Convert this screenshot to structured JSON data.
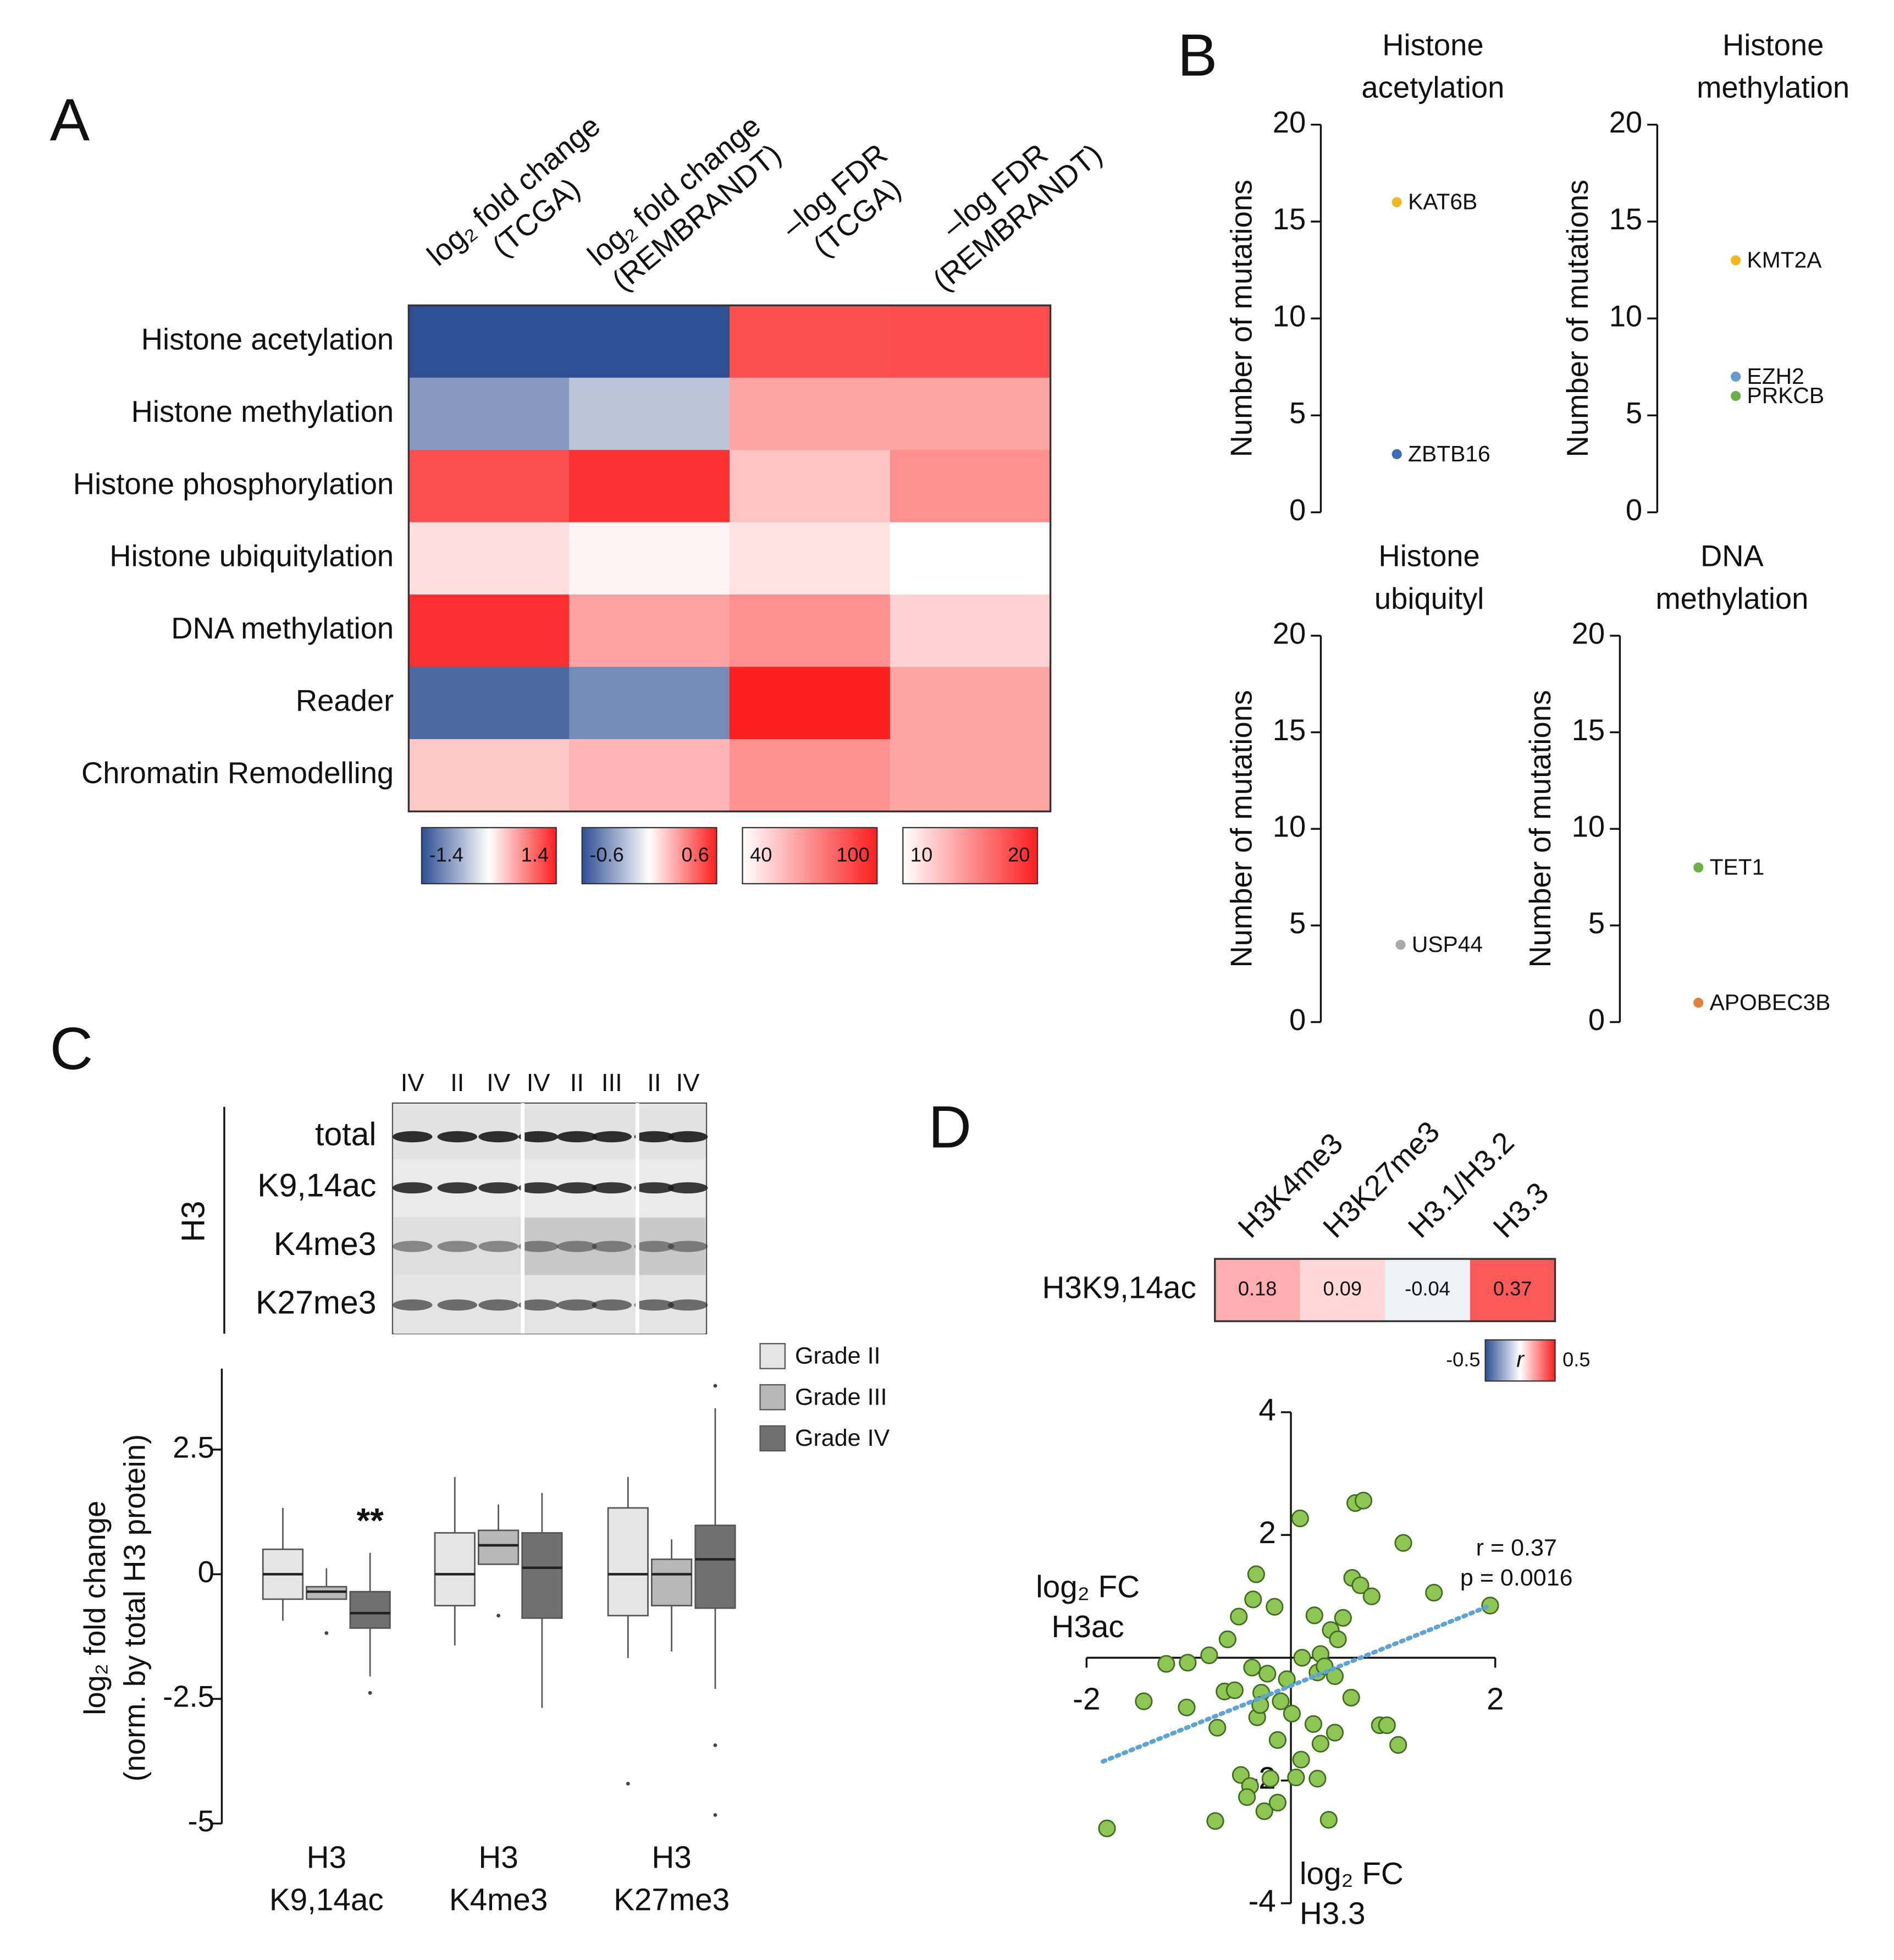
{
  "panel_labels": [
    "A",
    "B",
    "C",
    "D"
  ],
  "blot": {
    "lanes": [
      "IV",
      "II",
      "IV",
      "IV",
      "II",
      "III",
      "II",
      "IV"
    ],
    "group": "H3",
    "rows": [
      "total",
      "K9,14ac",
      "K4me3",
      "K27me3"
    ]
  },
  "chart_data": [
    {
      "type": "heatmap",
      "rows": [
        "Histone acetylation",
        "Histone methylation",
        "Histone phosphorylation",
        "Histone ubiquitylation",
        "DNA methylation",
        "Reader",
        "Chromatin Remodelling"
      ],
      "columns": [
        {
          "label": [
            "log₂ fold change",
            "(TCGA)"
          ],
          "lim": [
            -1.4,
            1.4
          ],
          "colors": [
            "#2e4f94",
            "#ffffff",
            "#fb1f1f"
          ]
        },
        {
          "label": [
            "log₂ fold change",
            "(REMBRANDT)"
          ],
          "lim": [
            -0.6,
            0.6
          ],
          "colors": [
            "#2e4f94",
            "#ffffff",
            "#fb1f1f"
          ]
        },
        {
          "label": [
            "–log FDR",
            "(TCGA)"
          ],
          "lim": [
            40,
            100
          ],
          "colors": [
            "#ffffff",
            "#fb1f1f"
          ]
        },
        {
          "label": [
            "–log FDR",
            "(REMBRANDT)"
          ],
          "lim": [
            10,
            20
          ],
          "colors": [
            "#ffffff",
            "#fb1f1f"
          ]
        }
      ],
      "values": [
        [
          -1.4,
          -0.6,
          87,
          18
        ],
        [
          -0.8,
          -0.2,
          64,
          14
        ],
        [
          1.1,
          0.55,
          56,
          15
        ],
        [
          0.2,
          0.03,
          48,
          10
        ],
        [
          1.3,
          0.25,
          70,
          12
        ],
        [
          -1.2,
          -0.4,
          100,
          14
        ],
        [
          0.35,
          0.2,
          70,
          14
        ]
      ]
    },
    {
      "type": "strip",
      "title": [
        "Histone",
        "acetylation"
      ],
      "ylabel": "Number of mutations",
      "ylim": [
        0,
        20
      ],
      "yticks": [
        0,
        5,
        10,
        15,
        20
      ],
      "categories": [
        "KAT6B",
        "ZBTB16"
      ],
      "values": [
        16,
        3
      ],
      "colors": [
        "#f2b622",
        "#3d6bb5"
      ]
    },
    {
      "type": "strip",
      "title": [
        "Histone",
        "methylation"
      ],
      "ylabel": "Number of mutations",
      "ylim": [
        0,
        20
      ],
      "yticks": [
        0,
        5,
        10,
        15,
        20
      ],
      "categories": [
        "KMT2A",
        "EZH2",
        "PRKCB"
      ],
      "values": [
        13,
        7,
        6
      ],
      "colors": [
        "#f2b622",
        "#6699cc",
        "#6fae44"
      ]
    },
    {
      "type": "strip",
      "title": [
        "Histone",
        "ubiquityl"
      ],
      "ylabel": "Number of mutations",
      "ylim": [
        0,
        20
      ],
      "yticks": [
        0,
        5,
        10,
        15,
        20
      ],
      "categories": [
        "USP44"
      ],
      "values": [
        4
      ],
      "colors": [
        "#aaaaaa"
      ]
    },
    {
      "type": "strip",
      "title": [
        "DNA",
        "methylation"
      ],
      "ylabel": "Number of mutations",
      "ylim": [
        0,
        20
      ],
      "yticks": [
        0,
        5,
        10,
        15,
        20
      ],
      "categories": [
        "TET1",
        "APOBEC3B"
      ],
      "values": [
        8,
        1
      ],
      "colors": [
        "#6fae44",
        "#e0803a"
      ]
    },
    {
      "type": "box",
      "categories": [
        [
          "H3",
          "K9,14ac"
        ],
        [
          "H3",
          "K4me3"
        ],
        [
          "H3",
          "K27me3"
        ]
      ],
      "ylabel": [
        "log₂ fold change",
        "(norm. by total H3 protein)"
      ],
      "ylim": [
        -5,
        4
      ],
      "yticks": [
        -5,
        -2.5,
        0,
        2.5
      ],
      "annotation": "**",
      "series": [
        {
          "name": "Grade II",
          "color": "#e6e6e6",
          "boxes": [
            {
              "min": -0.93,
              "q1": -0.5,
              "median": 0,
              "q3": 0.5,
              "max": 1.33
            },
            {
              "min": -1.43,
              "q1": -0.63,
              "median": 0,
              "q3": 0.83,
              "max": 1.95
            },
            {
              "min": -1.68,
              "q1": -0.83,
              "median": 0,
              "q3": 1.33,
              "max": 1.95,
              "outliers": [
                -4.2
              ]
            }
          ]
        },
        {
          "name": "Grade III",
          "color": "#b8b8b8",
          "boxes": [
            {
              "min": -0.5,
              "q1": -0.5,
              "median": -0.35,
              "q3": -0.25,
              "max": 0.12,
              "outliers": [
                -1.18
              ]
            },
            {
              "min": 0.2,
              "q1": 0.2,
              "median": 0.58,
              "q3": 0.88,
              "max": 1.4,
              "outliers": [
                -0.83
              ]
            },
            {
              "min": -1.55,
              "q1": -0.63,
              "median": 0,
              "q3": 0.3,
              "max": 0.7
            }
          ]
        },
        {
          "name": "Grade IV",
          "color": "#707070",
          "boxes": [
            {
              "min": -2.05,
              "q1": -1.08,
              "median": -0.78,
              "q3": -0.35,
              "max": 0.43,
              "outliers": [
                -2.38
              ]
            },
            {
              "min": -2.68,
              "q1": -0.88,
              "median": 0.13,
              "q3": 0.83,
              "max": 1.63
            },
            {
              "min": -2.3,
              "q1": -0.68,
              "median": 0.3,
              "q3": 0.98,
              "max": 3.33,
              "outliers": [
                3.78,
                -3.43,
                -4.83
              ]
            }
          ]
        }
      ]
    },
    {
      "type": "heatmap",
      "rows": [
        "H3K9,14ac"
      ],
      "columns": [
        "H3K4me3",
        "H3K27me3",
        "H3.1/H3.2",
        "H3.3"
      ],
      "values": [
        [
          0.18,
          0.09,
          -0.04,
          0.37
        ]
      ],
      "lim": [
        -0.5,
        0.5
      ],
      "colors": [
        "#2e4f94",
        "#ffffff",
        "#fb1f1f"
      ],
      "colorbar_label": "r"
    },
    {
      "type": "scatter",
      "xlabel": [
        "log₂ FC",
        "H3ac"
      ],
      "ylabel": [
        "log₂ FC",
        "H3.3"
      ],
      "xlim": [
        -2,
        2
      ],
      "ylim": [
        -4,
        4
      ],
      "xticks": [
        -2,
        2
      ],
      "yticks": [
        -4,
        -2,
        2,
        4
      ],
      "color": "#8dc653",
      "x": [
        0.09,
        0.63,
        0.71,
        1.1,
        1.4,
        1.95,
        -0.34,
        0.6,
        0.68,
        0.79,
        -0.37,
        -0.16,
        0.23,
        0.51,
        -0.51,
        0.39,
        0.46,
        -0.8,
        -0.62,
        0.11,
        0.29,
        -1.22,
        -1.01,
        -0.38,
        -0.23,
        -0.04,
        0.26,
        0.33,
        0.43,
        -1.44,
        -1.02,
        -0.65,
        -0.55,
        -0.29,
        -0.1,
        0.59,
        -0.33,
        -0.3,
        -0.72,
        0.22,
        0.43,
        0.87,
        0.94,
        1.05,
        -0.13,
        0.29,
        0.1,
        -0.49,
        0.05,
        0.26,
        -0.4,
        -0.43,
        -0.26,
        -0.13,
        0.37,
        -0.74,
        -1.8,
        -0.2,
        0.01
      ],
      "y": [
        2.27,
        2.52,
        2.56,
        1.87,
        1.06,
        0.85,
        1.36,
        1.3,
        1.18,
        1.0,
        0.95,
        0.83,
        0.69,
        0.65,
        0.67,
        0.45,
        0.3,
        0.04,
        0.3,
        0.0,
        0.06,
        -0.1,
        -0.08,
        -0.16,
        -0.26,
        -0.35,
        -0.24,
        -0.14,
        -0.3,
        -0.71,
        -0.81,
        -0.55,
        -0.53,
        -0.57,
        -0.71,
        -0.65,
        -0.97,
        -0.77,
        -1.14,
        -1.08,
        -1.22,
        -1.1,
        -1.1,
        -1.42,
        -1.34,
        -1.4,
        -1.66,
        -1.91,
        -1.95,
        -1.97,
        -2.09,
        -2.27,
        -2.5,
        -2.36,
        -2.64,
        -2.66,
        -2.78,
        -1.97,
        -0.91
      ],
      "fit": {
        "x": [
          -1.84,
          1.95
        ],
        "y": [
          -1.69,
          0.85
        ],
        "color": "#5ea3d6"
      },
      "annotations": [
        "r = 0.37",
        "p = 0.0016"
      ]
    }
  ]
}
